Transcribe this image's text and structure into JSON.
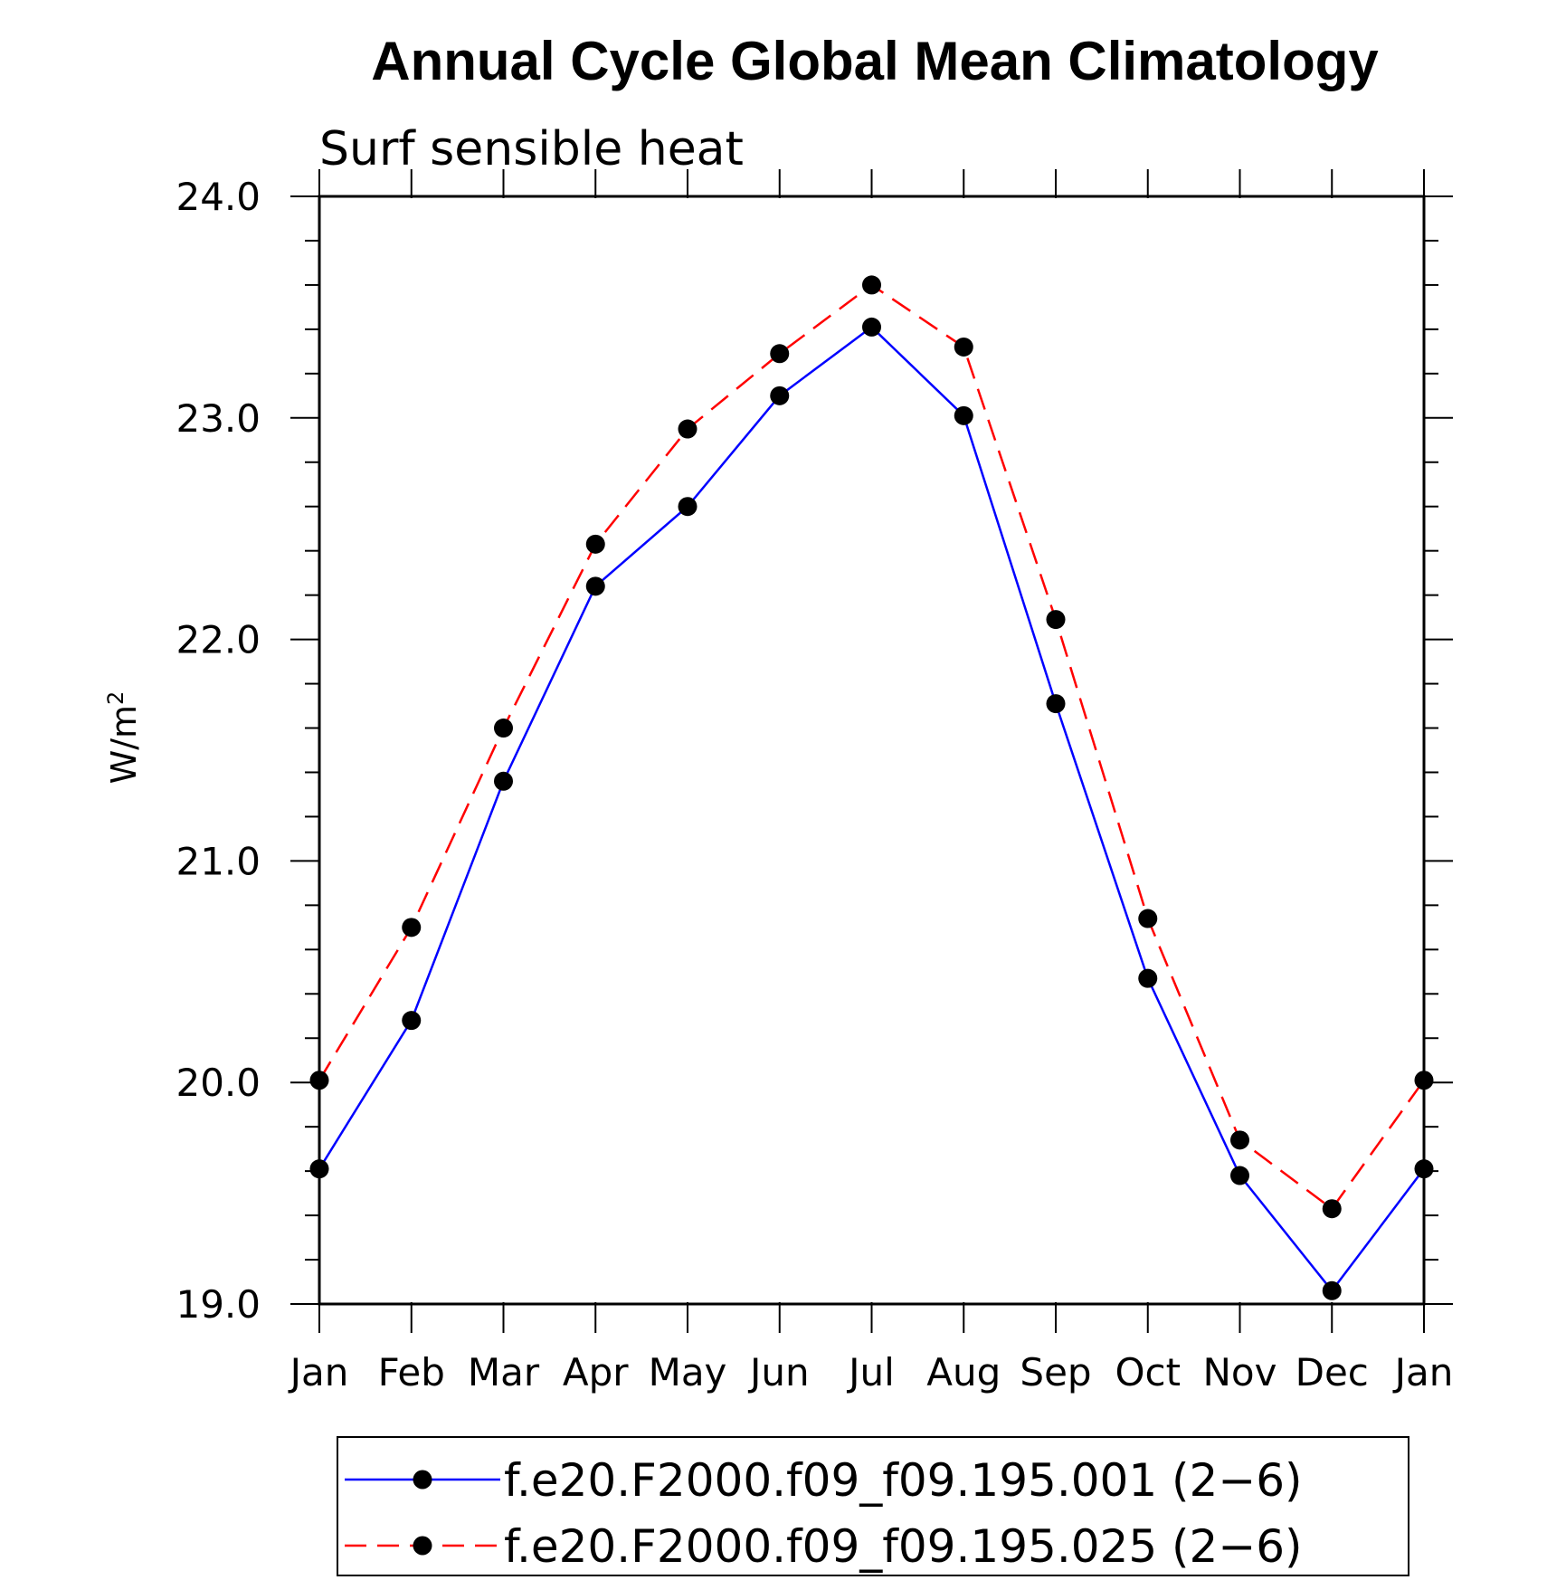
{
  "chart_data": {
    "type": "line",
    "title": "Annual Cycle Global Mean Climatology",
    "subtitle": "Surf sensible heat",
    "ylabel": "W/m",
    "ylabel_sup": "2",
    "xlabel": "",
    "categories": [
      "Jan",
      "Feb",
      "Mar",
      "Apr",
      "May",
      "Jun",
      "Jul",
      "Aug",
      "Sep",
      "Oct",
      "Nov",
      "Dec",
      "Jan"
    ],
    "ylim": [
      19.0,
      24.0
    ],
    "yticks": [
      19.0,
      20.0,
      21.0,
      22.0,
      23.0,
      24.0
    ],
    "ytick_labels": [
      "19.0",
      "20.0",
      "21.0",
      "22.0",
      "23.0",
      "24.0"
    ],
    "grid": false,
    "legend_position": "bottom",
    "series": [
      {
        "name": "f.e20.F2000.f09_f09.195.001 (2−6)",
        "color": "#0000ff",
        "dash": "solid",
        "values": [
          19.61,
          20.28,
          21.36,
          22.24,
          22.6,
          23.1,
          23.41,
          23.01,
          21.71,
          20.47,
          19.58,
          19.06,
          19.61
        ]
      },
      {
        "name": "f.e20.F2000.f09_f09.195.025 (2−6)",
        "color": "#ff0000",
        "dash": "dashed",
        "values": [
          20.01,
          20.7,
          21.6,
          22.43,
          22.95,
          23.29,
          23.6,
          23.32,
          22.09,
          20.74,
          19.74,
          19.43,
          20.01
        ]
      }
    ]
  }
}
